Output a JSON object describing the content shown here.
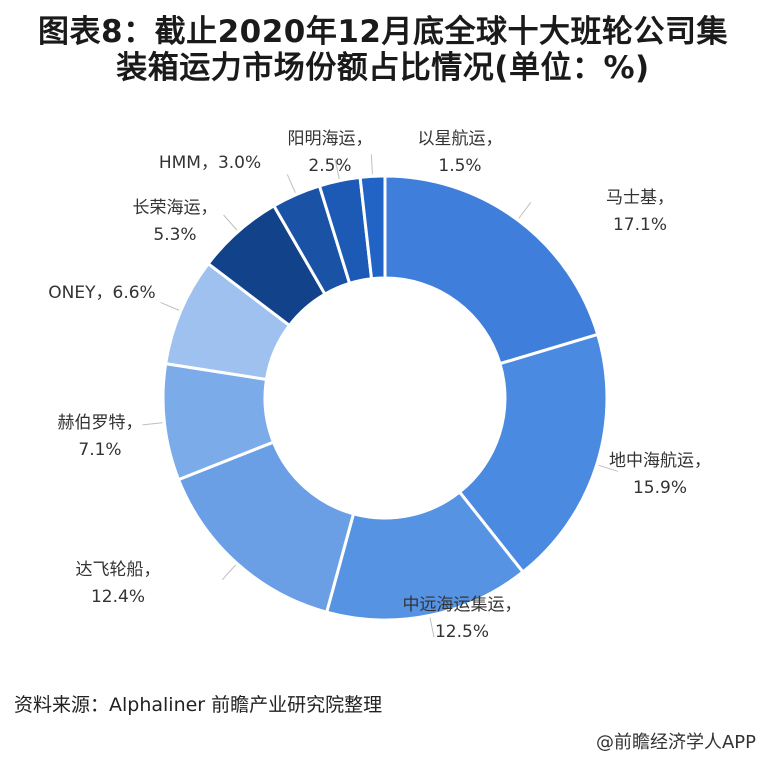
{
  "title_line1": "图表8：截止2020年12月底全球十大班轮公司集",
  "title_line2": "装箱运力市场份额占比情况(单位：%)",
  "source": "资料来源：Alphaliner 前瞻产业研究院整理",
  "credit": "@前瞻经济学人APP",
  "chart_data": {
    "type": "pie",
    "donut": true,
    "title": "图表8：截止2020年12月底全球十大班轮公司集装箱运力市场份额占比情况(单位：%)",
    "unit": "%",
    "slices": [
      {
        "name": "马士基",
        "value": 17.1,
        "value_label": "17.1%",
        "color": "#3f7fdb"
      },
      {
        "name": "地中海航运",
        "value": 15.9,
        "value_label": "15.9%",
        "color": "#4a8ae0"
      },
      {
        "name": "中远海运集运",
        "value": 12.5,
        "value_label": "12.5%",
        "color": "#5694e3"
      },
      {
        "name": "达飞轮船",
        "value": 12.4,
        "value_label": "12.4%",
        "color": "#6a9fe6"
      },
      {
        "name": "赫伯罗特",
        "value": 7.1,
        "value_label": "7.1%",
        "color": "#7cabea"
      },
      {
        "name": "ONEY",
        "value": 6.6,
        "value_label": "6.6%",
        "color": "#9ec1f0"
      },
      {
        "name": "长荣海运",
        "value": 5.3,
        "value_label": "5.3%",
        "color": "#11428a"
      },
      {
        "name": "HMM",
        "value": 3.0,
        "value_label": "3.0%",
        "color": "#1a52a6"
      },
      {
        "name": "阳明海运",
        "value": 2.5,
        "value_label": "2.5%",
        "color": "#1c5ab6"
      },
      {
        "name": "以星航运",
        "value": 1.5,
        "value_label": "1.5%",
        "color": "#2264c5"
      }
    ]
  }
}
